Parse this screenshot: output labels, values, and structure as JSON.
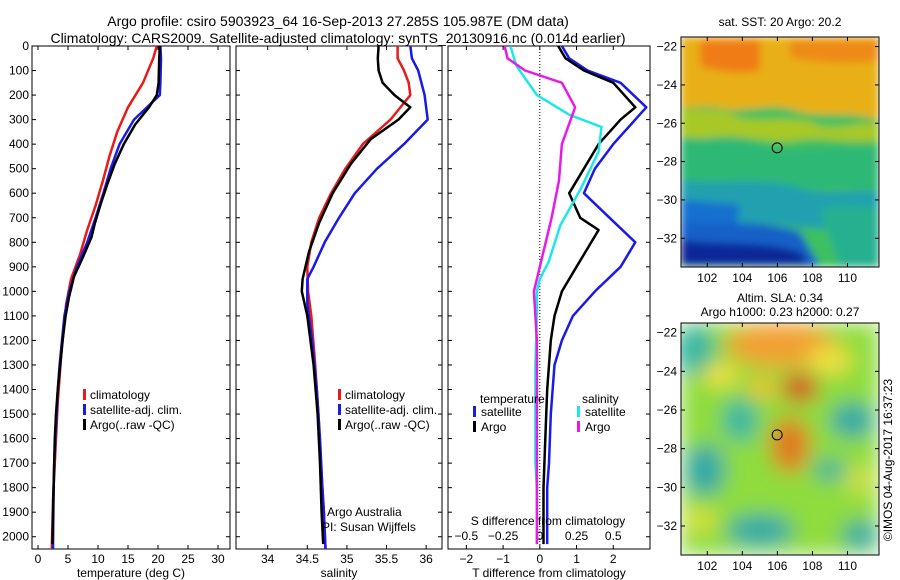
{
  "header": {
    "title_line1": "Argo profile: csiro 5903923_64 16-Sep-2013 27.285S 105.987E (DM data)",
    "title_line2": "Climatology: CARS2009. Satellite-adjusted climatology: synTS_20130916.nc (0.014d earlier)"
  },
  "colors": {
    "climatology": "#e81a1a",
    "satellite": "#1a1ae8",
    "argo": "#000000",
    "satellite_salinity": "#1de8e8",
    "argo_salinity": "#e81ae8"
  },
  "chart_data": [
    {
      "type": "line",
      "id": "temperature",
      "xlabel": "temperature (deg C)",
      "ylabel": "",
      "xlim": [
        -1,
        32
      ],
      "ylim": [
        2050,
        0
      ],
      "xticks": [
        0,
        5,
        10,
        15,
        20,
        25,
        30
      ],
      "xtick_labels": [
        "0",
        "5",
        "10",
        "15",
        "20",
        "25",
        "30"
      ],
      "yticks": [
        0,
        100,
        200,
        300,
        400,
        500,
        600,
        700,
        800,
        900,
        1000,
        1100,
        1200,
        1300,
        1400,
        1500,
        1600,
        1700,
        1800,
        1900,
        2000
      ],
      "yticklabels": [
        "0",
        "100",
        "200",
        "300",
        "400",
        "500",
        "600",
        "700",
        "800",
        "900",
        "1000",
        "1100",
        "1200",
        "1300",
        "1400",
        "1500",
        "1600",
        "1700",
        "1800",
        "1900",
        "2000"
      ],
      "legend": [
        {
          "label": "climatology",
          "color": "#e81a1a"
        },
        {
          "label": "satellite-adj. clim.",
          "color": "#1a1ae8"
        },
        {
          "label": "Argo(..raw -QC)",
          "color": "#000000"
        }
      ],
      "series": [
        {
          "name": "climatology",
          "color": "#e81a1a",
          "x": [
            19.8,
            19.2,
            17.5,
            15.0,
            13.2,
            11.9,
            10.8,
            9.6,
            8.2,
            7.0,
            5.5,
            4.7,
            4.3,
            3.9,
            3.6,
            3.3,
            3.1,
            2.9,
            2.7,
            2.5,
            2.3
          ],
          "y": [
            0,
            50,
            150,
            250,
            350,
            450,
            550,
            650,
            750,
            850,
            950,
            1050,
            1150,
            1250,
            1350,
            1450,
            1550,
            1650,
            1750,
            1850,
            2050
          ]
        },
        {
          "name": "satellite-adj. clim.",
          "color": "#1a1ae8",
          "x": [
            20.4,
            20.5,
            20.4,
            20.3,
            16.0,
            13.6,
            12.1,
            10.9,
            9.6,
            8.2,
            6.5,
            5.2,
            4.4,
            4.0,
            3.6,
            3.3,
            3.1,
            2.9,
            2.7,
            2.6,
            2.5
          ],
          "y": [
            0,
            50,
            150,
            200,
            300,
            400,
            500,
            600,
            700,
            800,
            900,
            1000,
            1100,
            1200,
            1300,
            1400,
            1500,
            1600,
            1700,
            1800,
            2050
          ]
        },
        {
          "name": "Argo(..raw -QC)",
          "color": "#000000",
          "x": [
            20.3,
            20.2,
            20.1,
            19.8,
            18.5,
            16.2,
            14.3,
            12.8,
            11.6,
            10.5,
            9.5,
            8.9,
            7.5,
            6.0,
            5.2,
            4.6,
            4.1,
            3.7,
            3.3,
            3.0,
            2.8,
            2.6,
            2.4
          ],
          "y": [
            0,
            50,
            150,
            200,
            250,
            320,
            400,
            480,
            560,
            640,
            720,
            780,
            860,
            940,
            1020,
            1100,
            1200,
            1300,
            1400,
            1500,
            1600,
            1800,
            2030
          ]
        }
      ]
    },
    {
      "type": "line",
      "id": "salinity",
      "xlabel": "salinity",
      "ylabel": "",
      "xlim": [
        33.6,
        36.2
      ],
      "ylim": [
        2050,
        0
      ],
      "xticks": [
        34,
        34.5,
        35,
        35.5,
        36
      ],
      "xtick_labels": [
        "34",
        "34.5",
        "35",
        "35.5",
        "36"
      ],
      "legend": [
        {
          "label": "climatology",
          "color": "#e81a1a"
        },
        {
          "label": "satellite-adj. clim.",
          "color": "#1a1ae8"
        },
        {
          "label": "Argo(..raw -QC)",
          "color": "#000000"
        }
      ],
      "annotation": [
        "Argo Australia",
        "PI: Susan Wijffels"
      ],
      "series": [
        {
          "name": "climatology",
          "color": "#e81a1a",
          "x": [
            35.64,
            35.64,
            35.72,
            35.78,
            35.8,
            35.55,
            35.2,
            34.98,
            34.8,
            34.65,
            34.55,
            34.5,
            34.51,
            34.55,
            34.6,
            34.64,
            34.67,
            34.69,
            34.71,
            34.73
          ],
          "y": [
            0,
            50,
            100,
            150,
            200,
            300,
            400,
            500,
            600,
            700,
            800,
            900,
            1000,
            1100,
            1300,
            1500,
            1700,
            1800,
            1900,
            2050
          ]
        },
        {
          "name": "satellite-adj. clim.",
          "color": "#1a1ae8",
          "x": [
            35.8,
            35.82,
            35.9,
            35.98,
            36.02,
            35.72,
            35.38,
            35.1,
            34.9,
            34.72,
            34.58,
            34.5,
            34.5,
            34.56,
            34.62,
            34.66,
            34.69,
            34.71,
            34.73
          ],
          "y": [
            0,
            50,
            100,
            200,
            300,
            400,
            500,
            600,
            700,
            800,
            900,
            950,
            1050,
            1200,
            1400,
            1600,
            1800,
            1900,
            2050
          ]
        },
        {
          "name": "Argo(..raw -QC)",
          "color": "#000000",
          "x": [
            35.4,
            35.39,
            35.4,
            35.45,
            35.6,
            35.8,
            35.65,
            35.3,
            35.05,
            34.82,
            34.65,
            34.52,
            34.44,
            34.43,
            34.5,
            34.58,
            34.63,
            34.66,
            34.68,
            34.7
          ],
          "y": [
            0,
            50,
            100,
            150,
            200,
            250,
            300,
            380,
            480,
            600,
            720,
            840,
            950,
            1000,
            1100,
            1300,
            1500,
            1700,
            1900,
            2030
          ]
        }
      ]
    },
    {
      "type": "line",
      "id": "difference",
      "xlabel": "T difference from climatology",
      "xlabel_top": "S difference from climatology",
      "ylabel": "",
      "xlim": [
        -2.5,
        3.0
      ],
      "ylim": [
        2050,
        0
      ],
      "xticks": [
        -2,
        -1,
        0,
        1,
        2
      ],
      "xtick_labels": [
        "−2",
        "−1",
        "0",
        "1",
        "2"
      ],
      "sticks": [
        -0.5,
        -0.25,
        0,
        0.25,
        0.5
      ],
      "stick_labels": [
        "−0.5",
        "−0.25",
        "0",
        "0.25",
        "0.5"
      ],
      "s_scale": 4,
      "legend_titles": [
        "temperature",
        "salinity"
      ],
      "legend": [
        {
          "label": "satellite",
          "color": "#1a1ae8",
          "column": 0
        },
        {
          "label": "Argo",
          "color": "#000000",
          "column": 0
        },
        {
          "label": "satellite",
          "color": "#1de8e8",
          "column": 1
        },
        {
          "label": "Argo",
          "color": "#e81ae8",
          "column": 1
        }
      ],
      "series": [
        {
          "name": "temperature satellite",
          "color": "#1a1ae8",
          "x": [
            0.6,
            0.8,
            1.3,
            2.2,
            2.9,
            2.6,
            2.0,
            1.5,
            1.2,
            1.9,
            2.6,
            2.2,
            1.5,
            0.9,
            0.6,
            0.4,
            0.3,
            0.25,
            0.2,
            0.2,
            0.2
          ],
          "y": [
            0,
            50,
            100,
            150,
            250,
            300,
            400,
            500,
            600,
            700,
            800,
            900,
            1000,
            1100,
            1200,
            1300,
            1500,
            1700,
            1800,
            1900,
            2030
          ]
        },
        {
          "name": "temperature Argo",
          "color": "#000000",
          "x": [
            0.5,
            0.7,
            1.2,
            2.0,
            2.6,
            2.2,
            1.6,
            1.2,
            0.8,
            1.1,
            1.6,
            1.0,
            0.6,
            0.4,
            0.3,
            0.2,
            0.15,
            0.1,
            0.1,
            0.1
          ],
          "y": [
            0,
            50,
            100,
            150,
            250,
            300,
            400,
            500,
            600,
            700,
            750,
            900,
            1000,
            1100,
            1200,
            1400,
            1600,
            1800,
            1900,
            2030
          ]
        },
        {
          "name": "salinity satellite",
          "color": "#1de8e8",
          "x": [
            -0.2,
            -0.16,
            -0.02,
            0.2,
            0.42,
            0.4,
            0.28,
            0.14,
            0.06,
            0.0,
            -0.02,
            -0.02,
            -0.03,
            -0.03,
            -0.03,
            -0.02,
            -0.02,
            -0.02
          ],
          "y": [
            0,
            80,
            200,
            280,
            330,
            430,
            580,
            730,
            880,
            950,
            1000,
            1100,
            1300,
            1500,
            1700,
            1800,
            1900,
            2030
          ]
        },
        {
          "name": "salinity Argo",
          "color": "#e81ae8",
          "x": [
            -0.24,
            -0.22,
            -0.1,
            0.15,
            0.24,
            0.15,
            0.13,
            0.08,
            0.04,
            0.0,
            -0.04,
            -0.02,
            -0.02,
            -0.02,
            -0.02
          ],
          "y": [
            0,
            50,
            100,
            150,
            250,
            400,
            550,
            700,
            800,
            900,
            1000,
            1200,
            1500,
            1800,
            2030
          ]
        }
      ]
    },
    {
      "type": "heatmap",
      "id": "sst_map",
      "title": "sat. SST: 20 Argo: 20.2",
      "xlim": [
        100.5,
        111.8
      ],
      "ylim": [
        -33.5,
        -21.5
      ],
      "xticks": [
        102,
        104,
        106,
        108,
        110
      ],
      "yticks": [
        -22,
        -24,
        -26,
        -28,
        -30,
        -32
      ],
      "xtick_labels": [
        "102",
        "104",
        "106",
        "108",
        "110"
      ],
      "ytick_labels": [
        "−22",
        "−24",
        "−26",
        "−28",
        "−30",
        "−32"
      ],
      "marker": {
        "lon": 105.987,
        "lat": -27.285
      }
    },
    {
      "type": "heatmap",
      "id": "sla_map",
      "title_line1": "Altim. SLA: 0.34",
      "title_line2": "Argo h1000: 0.23 h2000: 0.27",
      "xlim": [
        100.5,
        111.8
      ],
      "ylim": [
        -33.5,
        -21.5
      ],
      "xticks": [
        102,
        104,
        106,
        108,
        110
      ],
      "yticks": [
        -22,
        -24,
        -26,
        -28,
        -30,
        -32
      ],
      "xtick_labels": [
        "102",
        "104",
        "106",
        "108",
        "110"
      ],
      "ytick_labels": [
        "−22",
        "−24",
        "−26",
        "−28",
        "−30",
        "−32"
      ],
      "marker": {
        "lon": 105.987,
        "lat": -27.285
      }
    }
  ],
  "footer": {
    "credit": "©IMOS 04-Aug-2017 16:37:23"
  }
}
